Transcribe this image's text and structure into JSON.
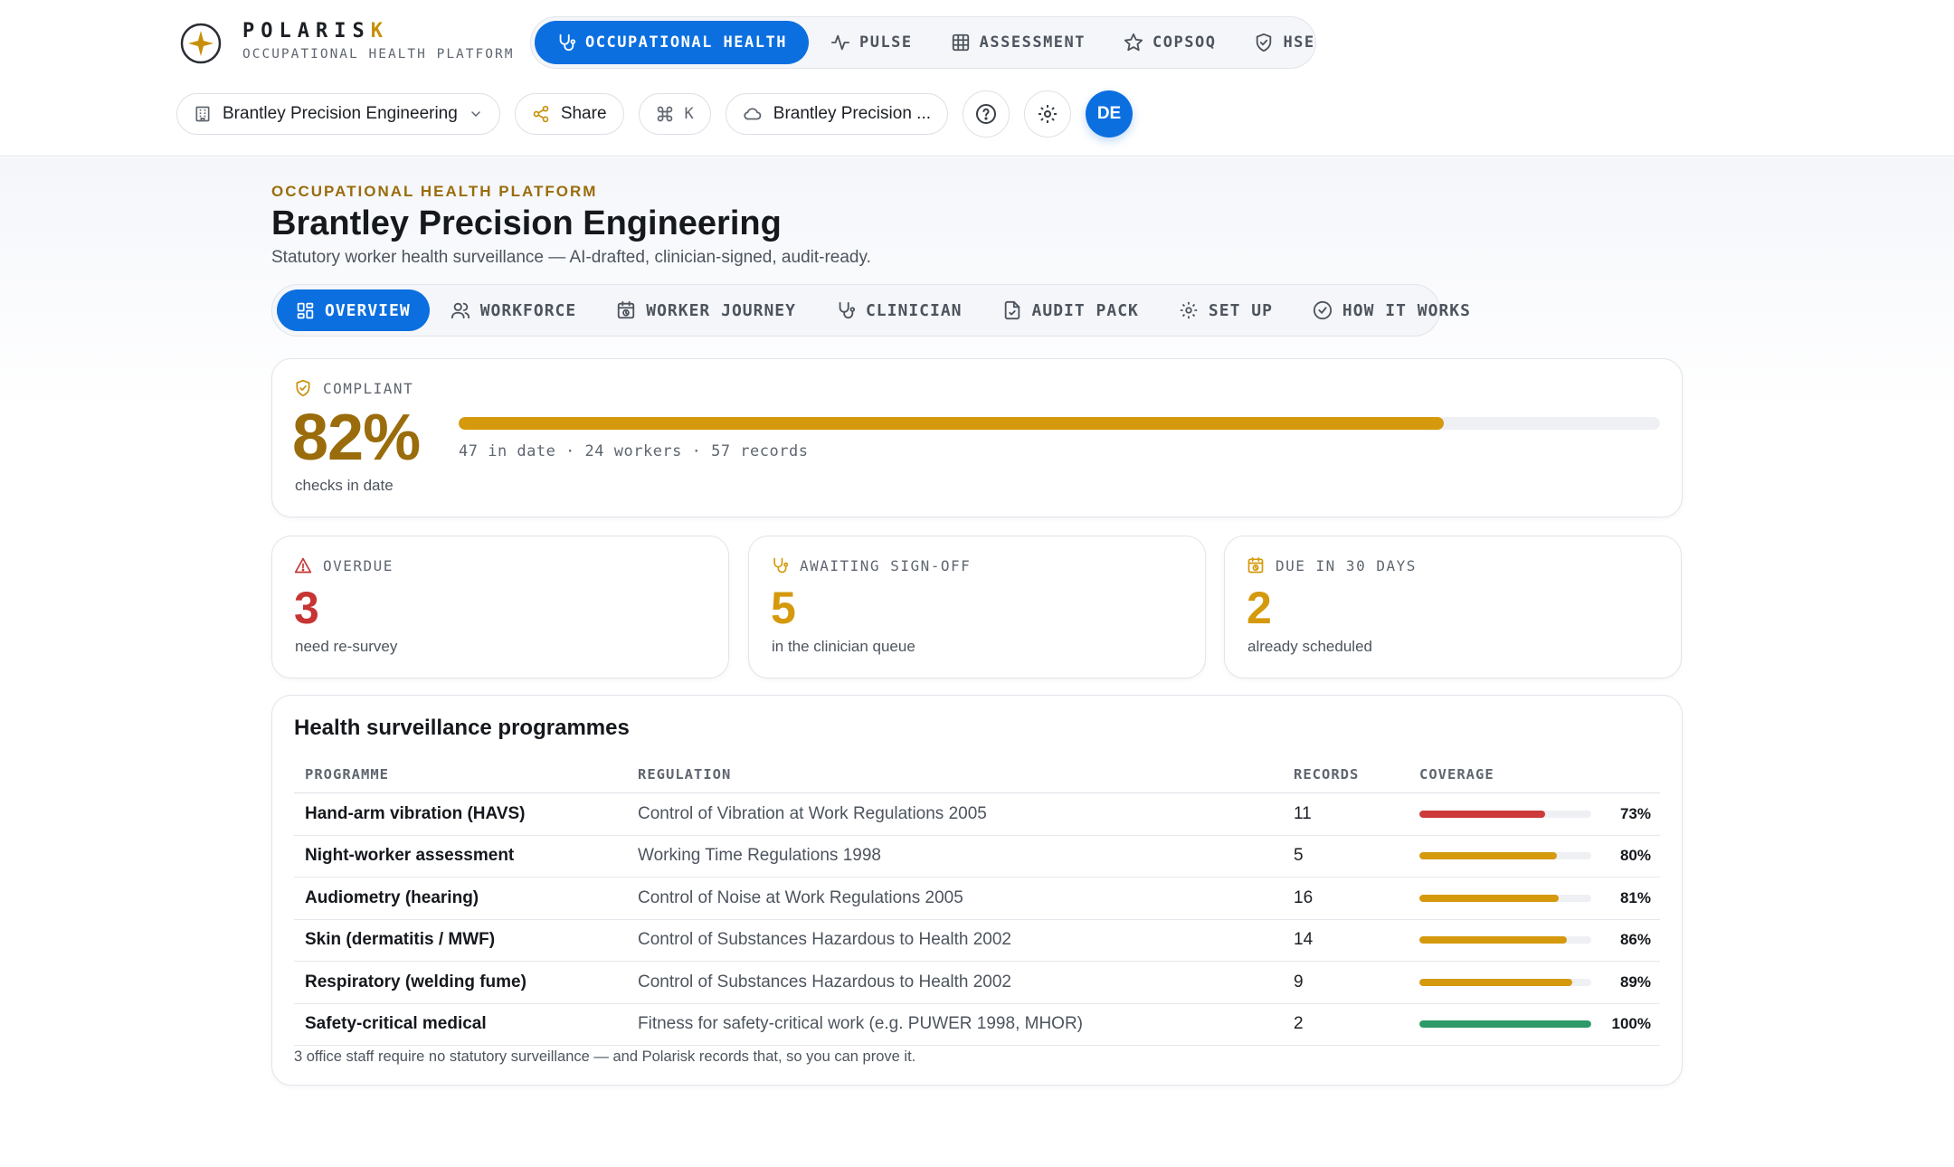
{
  "brand": {
    "name_main": "POLARIS",
    "name_accent": "K",
    "subtitle": "OCCUPATIONAL HEALTH PLATFORM"
  },
  "top_nav": [
    {
      "label": "OCCUPATIONAL HEALTH",
      "icon": "stethoscope-icon",
      "active": true
    },
    {
      "label": "PULSE",
      "icon": "activity-icon",
      "active": false
    },
    {
      "label": "ASSESSMENT",
      "icon": "grid-icon",
      "active": false
    },
    {
      "label": "COPSOQ",
      "icon": "star-icon",
      "active": false
    },
    {
      "label": "HSE",
      "icon": "shield-check-icon",
      "active": false
    }
  ],
  "toolbar": {
    "org_selector": "Brantley Precision Engineering",
    "share_label": "Share",
    "shortcut_label": "K",
    "cloud_org": "Brantley Precision ...",
    "avatar_initials": "DE"
  },
  "page": {
    "eyebrow": "OCCUPATIONAL HEALTH PLATFORM",
    "title": "Brantley Precision Engineering",
    "subtitle": "Statutory worker health surveillance — AI-drafted, clinician-signed, audit-ready."
  },
  "sub_nav": [
    {
      "label": "OVERVIEW",
      "icon": "dashboard-icon",
      "active": true
    },
    {
      "label": "WORKFORCE",
      "icon": "users-icon",
      "active": false
    },
    {
      "label": "WORKER JOURNEY",
      "icon": "calendar-clock-icon",
      "active": false
    },
    {
      "label": "CLINICIAN",
      "icon": "stethoscope-icon",
      "active": false
    },
    {
      "label": "AUDIT PACK",
      "icon": "file-check-icon",
      "active": false
    },
    {
      "label": "SET UP",
      "icon": "gear-icon",
      "active": false
    },
    {
      "label": "HOW IT WORKS",
      "icon": "check-circle-icon",
      "active": false
    }
  ],
  "compliance": {
    "label": "COMPLIANT",
    "value": "82%",
    "fraction": 0.82,
    "caption": "checks in date",
    "meta": "47 in date · 24 workers · 57 records"
  },
  "stats": [
    {
      "label": "OVERDUE",
      "value": "3",
      "caption": "need re-survey",
      "color": "#c73434",
      "icon": "alert-triangle-icon"
    },
    {
      "label": "AWAITING SIGN-OFF",
      "value": "5",
      "caption": "in the clinician queue",
      "color": "#d4990c",
      "icon": "stethoscope-icon"
    },
    {
      "label": "DUE IN 30 DAYS",
      "value": "2",
      "caption": "already scheduled",
      "color": "#d4990c",
      "icon": "calendar-clock-icon"
    }
  ],
  "programmes": {
    "title": "Health surveillance programmes",
    "columns": [
      "PROGRAMME",
      "REGULATION",
      "RECORDS",
      "COVERAGE"
    ],
    "rows": [
      {
        "programme": "Hand-arm vibration (HAVS)",
        "regulation": "Control of Vibration at Work Regulations 2005",
        "records": "11",
        "coverage": "73%",
        "fraction": 0.73,
        "color": "#cc3a3a"
      },
      {
        "programme": "Night-worker assessment",
        "regulation": "Working Time Regulations 1998",
        "records": "5",
        "coverage": "80%",
        "fraction": 0.8,
        "color": "#d4990c"
      },
      {
        "programme": "Audiometry (hearing)",
        "regulation": "Control of Noise at Work Regulations 2005",
        "records": "16",
        "coverage": "81%",
        "fraction": 0.81,
        "color": "#d4990c"
      },
      {
        "programme": "Skin (dermatitis / MWF)",
        "regulation": "Control of Substances Hazardous to Health 2002",
        "records": "14",
        "coverage": "86%",
        "fraction": 0.86,
        "color": "#d4990c"
      },
      {
        "programme": "Respiratory (welding fume)",
        "regulation": "Control of Substances Hazardous to Health 2002",
        "records": "9",
        "coverage": "89%",
        "fraction": 0.89,
        "color": "#d4990c"
      },
      {
        "programme": "Safety-critical medical",
        "regulation": "Fitness for safety-critical work (e.g. PUWER 1998, MHOR)",
        "records": "2",
        "coverage": "100%",
        "fraction": 1.0,
        "color": "#2e9a68"
      }
    ],
    "footnote": "3 office staff require no statutory surveillance — and Polarisk records that, so you can prove it."
  }
}
